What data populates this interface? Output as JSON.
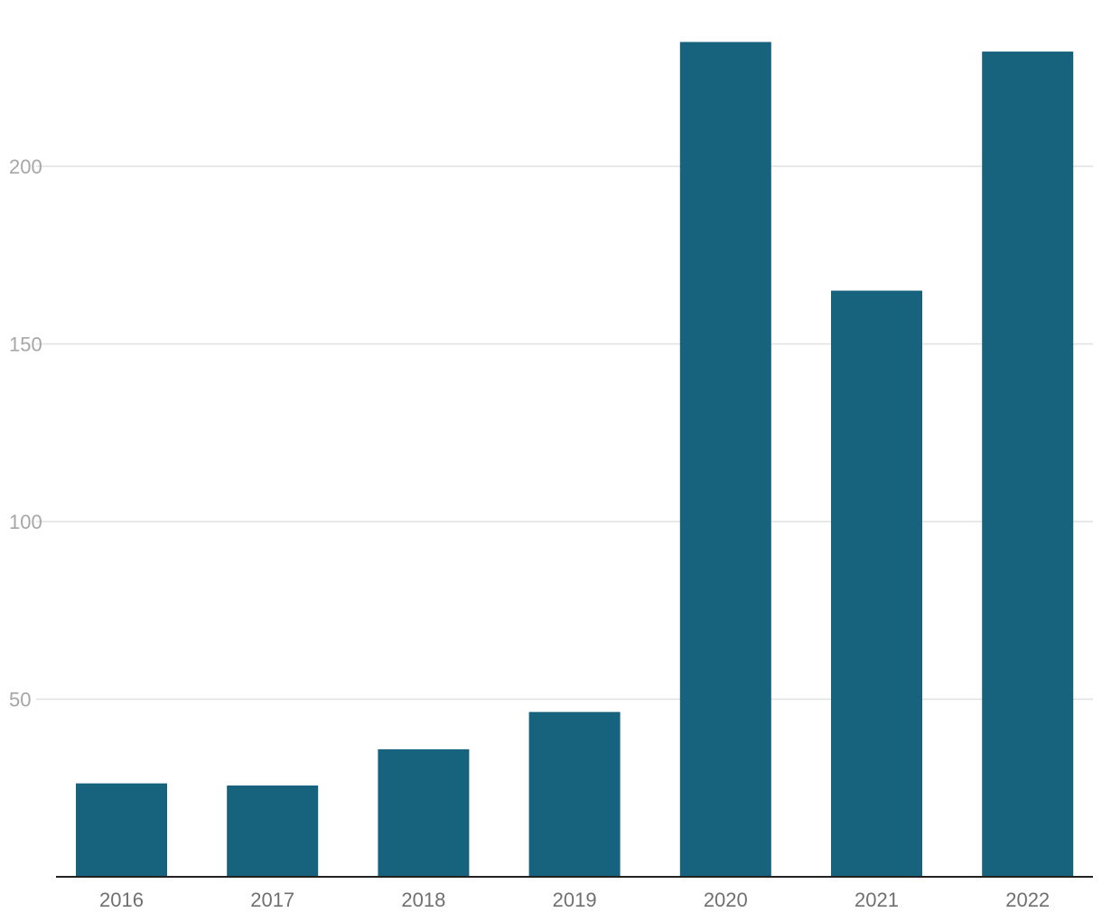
{
  "chart_data": {
    "type": "bar",
    "title": "",
    "xlabel": "",
    "ylabel": "",
    "categories": [
      "2016",
      "2017",
      "2018",
      "2019",
      "2020",
      "2021",
      "2022"
    ],
    "values": [
      26.3,
      25.7,
      35.9,
      46.4,
      235.0,
      165.0,
      232.3
    ],
    "ylim": [
      0,
      250
    ],
    "yticks": [
      50,
      100,
      150,
      200
    ],
    "grid": true,
    "legend": "none",
    "bar_color": "#17627c"
  }
}
